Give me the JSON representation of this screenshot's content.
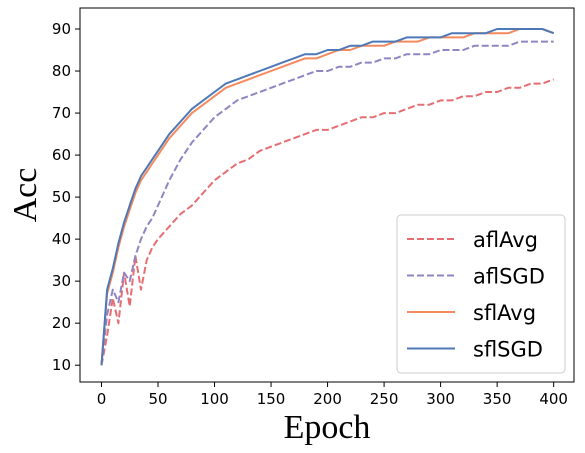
{
  "chart_data": {
    "type": "line",
    "title": "",
    "xlabel": "Epoch",
    "ylabel": "Acc",
    "xlim": [
      -19,
      418
    ],
    "ylim": [
      6,
      95
    ],
    "xticks": [
      0,
      50,
      100,
      150,
      200,
      250,
      300,
      350,
      400
    ],
    "yticks": [
      10,
      20,
      30,
      40,
      50,
      60,
      70,
      80,
      90
    ],
    "grid": false,
    "legend_position": "bottom-right",
    "series": [
      {
        "name": "aflAvg",
        "color": "#e66e73",
        "dash": "dashed",
        "x": [
          0,
          5,
          10,
          15,
          20,
          25,
          30,
          35,
          40,
          45,
          50,
          60,
          70,
          80,
          90,
          100,
          110,
          120,
          130,
          140,
          150,
          160,
          170,
          180,
          190,
          200,
          210,
          220,
          230,
          240,
          250,
          260,
          270,
          280,
          290,
          300,
          310,
          320,
          330,
          340,
          350,
          360,
          370,
          380,
          390,
          400
        ],
        "y": [
          10,
          17,
          26,
          20,
          32,
          24,
          36,
          28,
          35,
          38,
          40,
          43,
          46,
          48,
          51,
          54,
          56,
          58,
          59,
          61,
          62,
          63,
          64,
          65,
          66,
          66,
          67,
          68,
          69,
          69,
          70,
          70,
          71,
          72,
          72,
          73,
          73,
          74,
          74,
          75,
          75,
          76,
          76,
          77,
          77,
          78
        ]
      },
      {
        "name": "aflSGD",
        "color": "#9184c2",
        "dash": "dashed",
        "x": [
          0,
          5,
          10,
          15,
          20,
          25,
          30,
          35,
          40,
          45,
          50,
          60,
          70,
          80,
          90,
          100,
          110,
          120,
          130,
          140,
          150,
          160,
          170,
          180,
          190,
          200,
          210,
          220,
          230,
          240,
          250,
          260,
          270,
          280,
          290,
          300,
          310,
          320,
          330,
          340,
          350,
          360,
          370,
          380,
          390,
          400
        ],
        "y": [
          10,
          22,
          28,
          25,
          32,
          30,
          36,
          40,
          43,
          45,
          48,
          54,
          59,
          63,
          66,
          69,
          71,
          73,
          74,
          75,
          76,
          77,
          78,
          79,
          80,
          80,
          81,
          81,
          82,
          82,
          83,
          83,
          84,
          84,
          84,
          85,
          85,
          85,
          86,
          86,
          86,
          86,
          87,
          87,
          87,
          87
        ]
      },
      {
        "name": "sflAvg",
        "color": "#f48a5e",
        "dash": "solid",
        "x": [
          0,
          5,
          10,
          15,
          20,
          25,
          30,
          35,
          40,
          45,
          50,
          60,
          70,
          80,
          90,
          100,
          110,
          120,
          130,
          140,
          150,
          160,
          170,
          180,
          190,
          200,
          210,
          220,
          230,
          240,
          250,
          260,
          270,
          280,
          290,
          300,
          310,
          320,
          330,
          340,
          350,
          360,
          370,
          380,
          390,
          400
        ],
        "y": [
          10,
          27,
          32,
          38,
          43,
          47,
          51,
          54,
          56,
          58,
          60,
          64,
          67,
          70,
          72,
          74,
          76,
          77,
          78,
          79,
          80,
          81,
          82,
          83,
          83,
          84,
          85,
          85,
          86,
          86,
          86,
          87,
          87,
          87,
          88,
          88,
          88,
          88,
          89,
          89,
          89,
          89,
          90,
          90,
          90,
          89
        ]
      },
      {
        "name": "sflSGD",
        "color": "#4f79b6",
        "dash": "solid",
        "x": [
          0,
          5,
          10,
          15,
          20,
          25,
          30,
          35,
          40,
          45,
          50,
          60,
          70,
          80,
          90,
          100,
          110,
          120,
          130,
          140,
          150,
          160,
          170,
          180,
          190,
          200,
          210,
          220,
          230,
          240,
          250,
          260,
          270,
          280,
          290,
          300,
          310,
          320,
          330,
          340,
          350,
          360,
          370,
          380,
          390,
          400
        ],
        "y": [
          10,
          28,
          33,
          39,
          44,
          48,
          52,
          55,
          57,
          59,
          61,
          65,
          68,
          71,
          73,
          75,
          77,
          78,
          79,
          80,
          81,
          82,
          83,
          84,
          84,
          85,
          85,
          86,
          86,
          87,
          87,
          87,
          88,
          88,
          88,
          88,
          89,
          89,
          89,
          89,
          90,
          90,
          90,
          90,
          90,
          89
        ]
      }
    ]
  }
}
